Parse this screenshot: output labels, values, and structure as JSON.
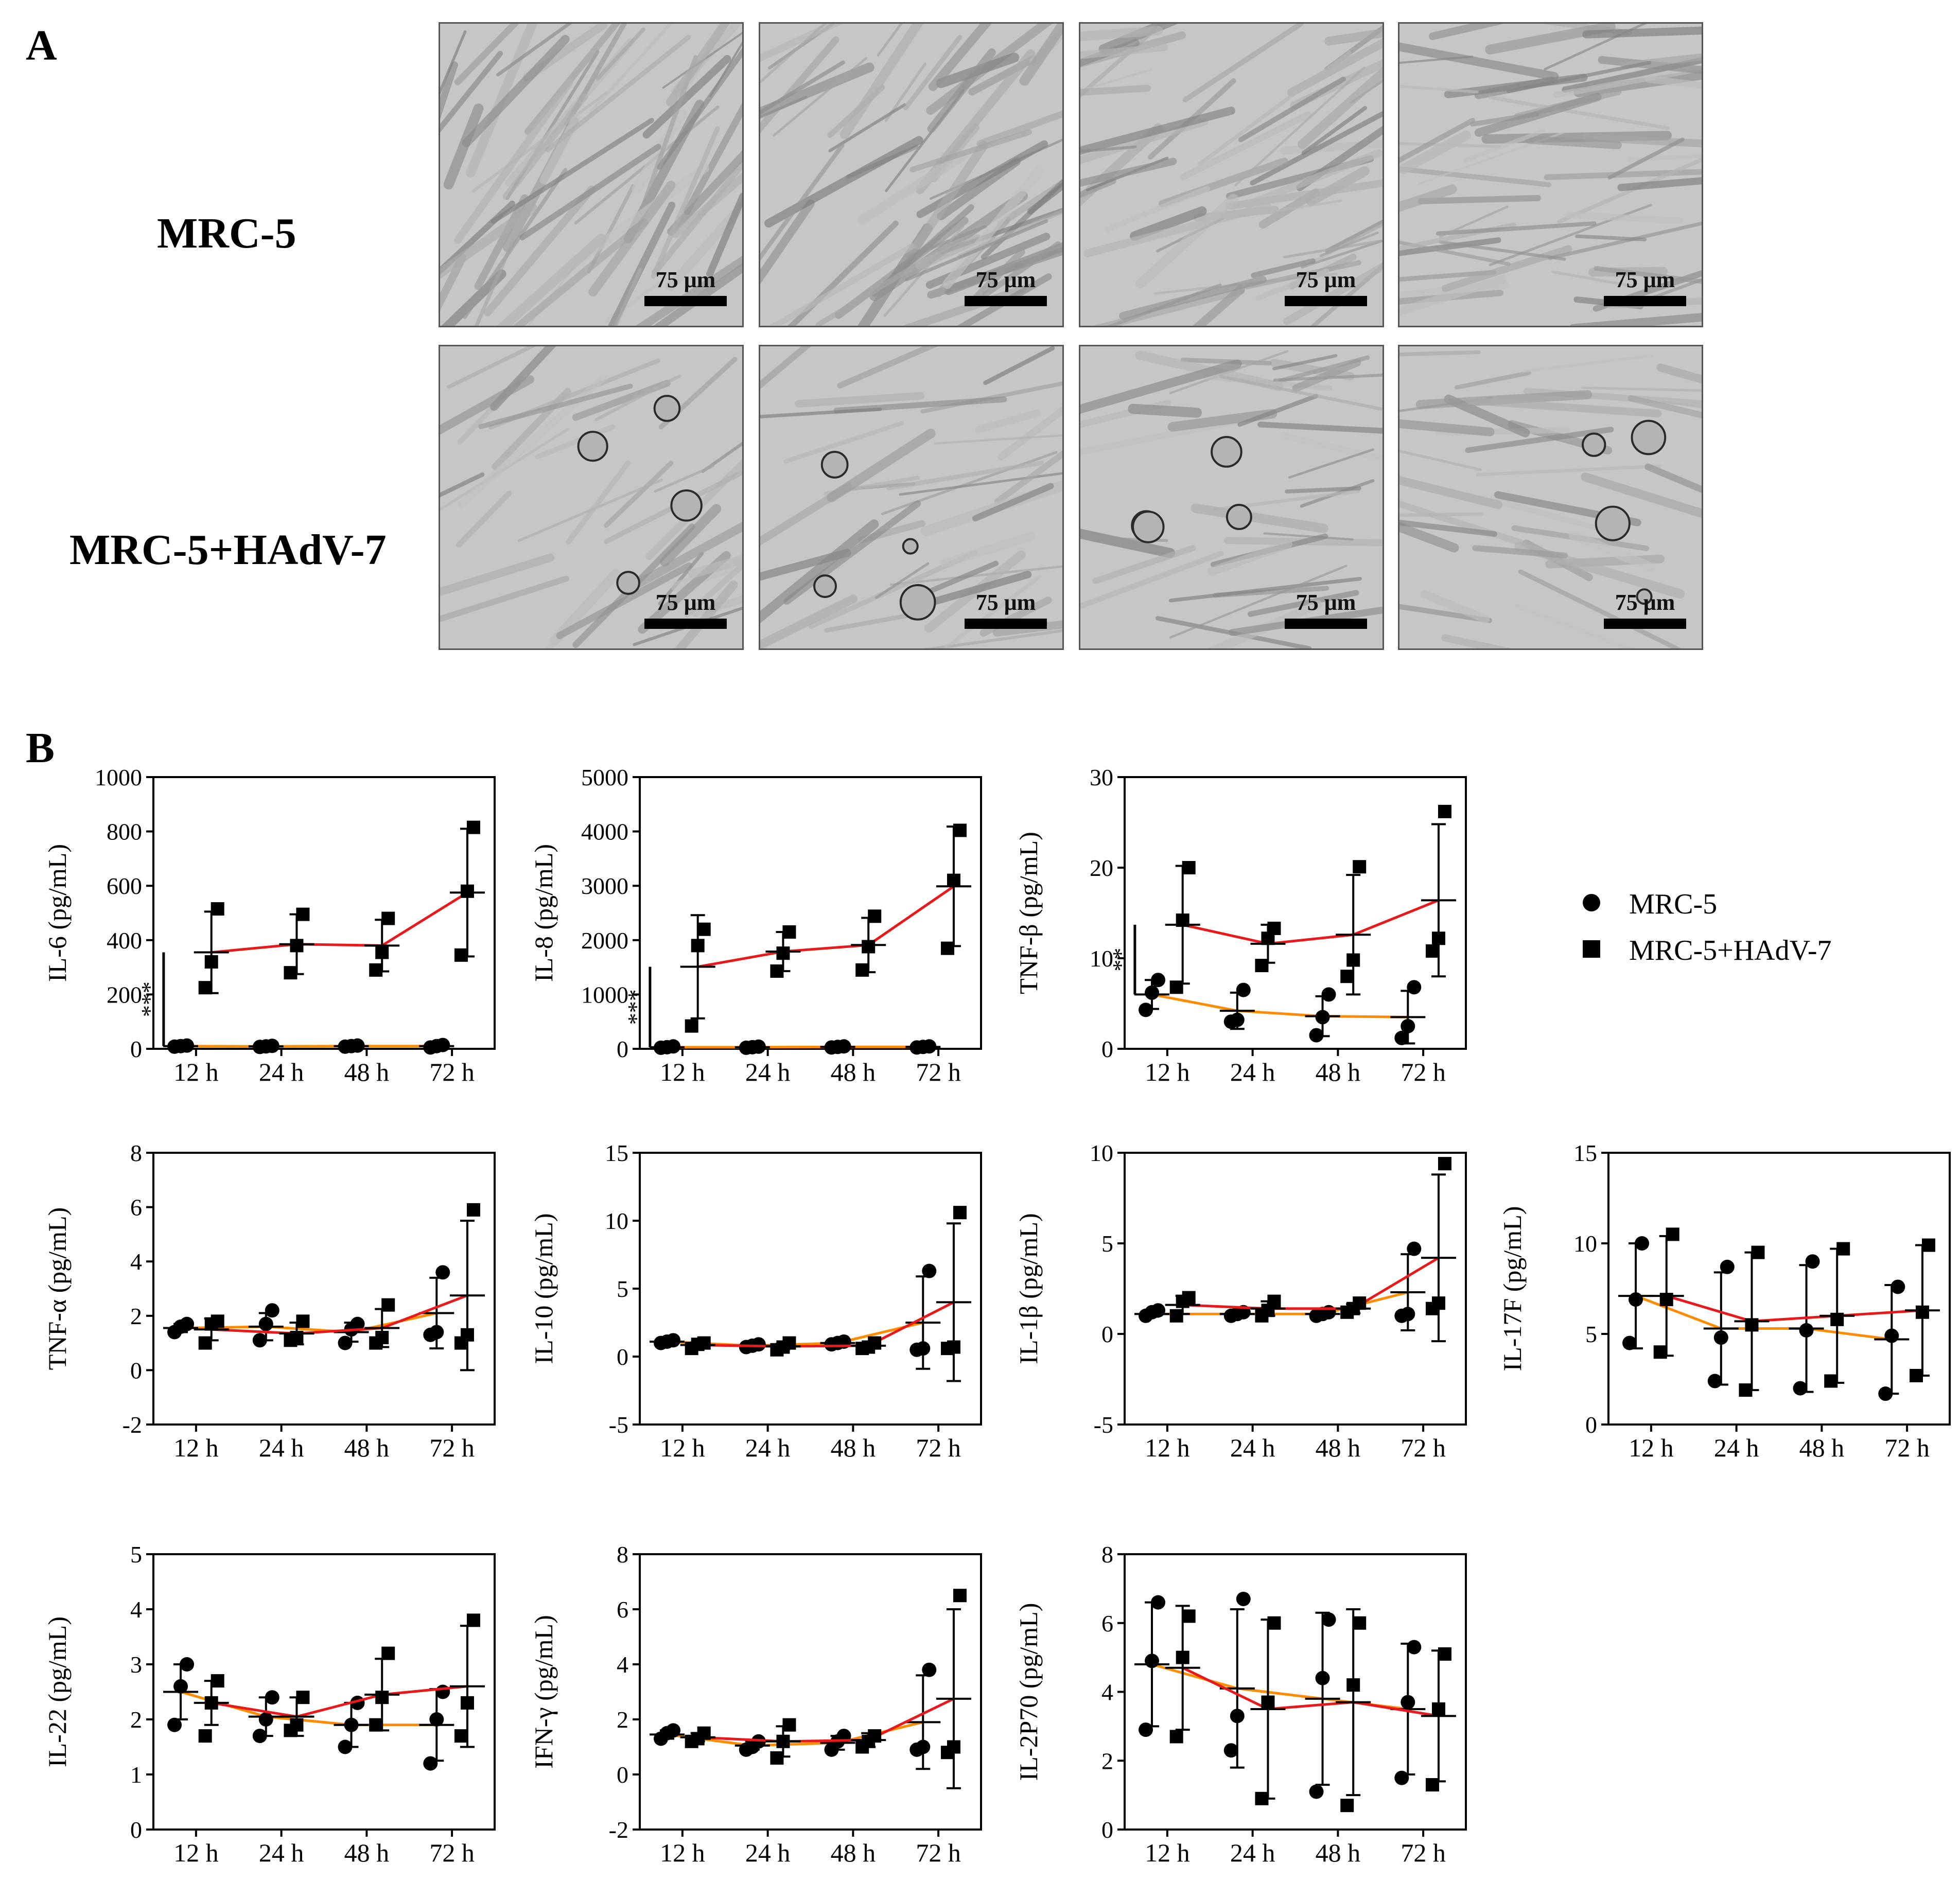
{
  "panel_labels": {
    "a": "A",
    "b": "B"
  },
  "micrographs": {
    "rows": [
      {
        "label": "MRC-5",
        "tiles": [
          {
            "scale_label": "75 μm",
            "infected": false
          },
          {
            "scale_label": "75 μm",
            "infected": false
          },
          {
            "scale_label": "75 μm",
            "infected": false
          },
          {
            "scale_label": "75 μm",
            "infected": false
          }
        ]
      },
      {
        "label": "MRC-5+HAdV-7",
        "tiles": [
          {
            "scale_label": "75 μm",
            "infected": true
          },
          {
            "scale_label": "75 μm",
            "infected": true
          },
          {
            "scale_label": "75 μm",
            "infected": true
          },
          {
            "scale_label": "75 μm",
            "infected": true
          }
        ]
      }
    ]
  },
  "legend": {
    "mrc5": "MRC-5",
    "hadv": "MRC-5+HAdV-7"
  },
  "colors": {
    "mrc5_line": "#ff8c00",
    "hadv_line": "#e8191b",
    "marker": "#000000"
  },
  "chart_data": [
    {
      "type": "scatter",
      "title": "",
      "ylabel": "IL-6 (pg/mL)",
      "ylim": [
        0,
        1000
      ],
      "yticks": [
        "0",
        "200",
        "400",
        "600",
        "800",
        "1000"
      ],
      "categories": [
        "12 h",
        "24 h",
        "48 h",
        "72 h"
      ],
      "significance": "***",
      "series": [
        {
          "name": "MRC-5",
          "points": [
            [
              8,
              10,
              12
            ],
            [
              7,
              9,
              11
            ],
            [
              8,
              10,
              12
            ],
            [
              5,
              10,
              14
            ]
          ],
          "mean": [
            10,
            9,
            10,
            10
          ],
          "sd": [
            2,
            2,
            2,
            4
          ]
        },
        {
          "name": "MRC-5+HAdV-7",
          "points": [
            [
              225,
              320,
              515
            ],
            [
              280,
              380,
              495
            ],
            [
              290,
              355,
              480
            ],
            [
              345,
              580,
              815
            ]
          ],
          "mean": [
            355,
            385,
            380,
            575
          ],
          "sd": [
            150,
            110,
            95,
            235
          ]
        }
      ]
    },
    {
      "type": "scatter",
      "title": "",
      "ylabel": "IL-8 (pg/mL)",
      "ylim": [
        0,
        5000
      ],
      "yticks": [
        "0",
        "1000",
        "2000",
        "3000",
        "4000",
        "5000"
      ],
      "categories": [
        "12 h",
        "24 h",
        "48 h",
        "72 h"
      ],
      "significance": "***",
      "series": [
        {
          "name": "MRC-5",
          "points": [
            [
              20,
              30,
              45
            ],
            [
              20,
              30,
              40
            ],
            [
              25,
              35,
              45
            ],
            [
              25,
              35,
              45
            ]
          ],
          "mean": [
            30,
            30,
            35,
            35
          ],
          "sd": [
            12,
            10,
            10,
            10
          ]
        },
        {
          "name": "MRC-5+HAdV-7",
          "points": [
            [
              420,
              1900,
              2200
            ],
            [
              1430,
              1760,
              2150
            ],
            [
              1450,
              1880,
              2440
            ],
            [
              1850,
              3100,
              4020
            ]
          ],
          "mean": [
            1510,
            1790,
            1910,
            2990
          ],
          "sd": [
            950,
            360,
            500,
            1100
          ]
        }
      ]
    },
    {
      "type": "scatter",
      "title": "",
      "ylabel": "TNF-β (pg/mL)",
      "ylim": [
        0,
        30
      ],
      "yticks": [
        "0",
        "10",
        "20",
        "30"
      ],
      "categories": [
        "12 h",
        "24 h",
        "48 h",
        "72 h"
      ],
      "significance": "**",
      "series": [
        {
          "name": "MRC-5",
          "points": [
            [
              4.3,
              6.2,
              7.6
            ],
            [
              3.0,
              3.2,
              6.5
            ],
            [
              1.5,
              3.5,
              6.0
            ],
            [
              1.2,
              2.5,
              6.8
            ]
          ],
          "mean": [
            6.0,
            4.2,
            3.6,
            3.5
          ],
          "sd": [
            1.6,
            2.0,
            2.2,
            2.9
          ]
        },
        {
          "name": "MRC-5+HAdV-7",
          "points": [
            [
              6.8,
              14.2,
              20.0
            ],
            [
              9.2,
              12.2,
              13.3
            ],
            [
              8.0,
              9.8,
              20.1
            ],
            [
              10.8,
              12.2,
              26.2
            ]
          ],
          "mean": [
            13.7,
            11.6,
            12.6,
            16.4
          ],
          "sd": [
            6.5,
            2.1,
            6.6,
            8.4
          ]
        }
      ]
    },
    {
      "type": "scatter",
      "title": "",
      "ylabel": "TNF-α (pg/mL)",
      "ylim": [
        -2,
        8
      ],
      "yticks": [
        "-2",
        "0",
        "2",
        "4",
        "6",
        "8"
      ],
      "categories": [
        "12 h",
        "24 h",
        "48 h",
        "72 h"
      ],
      "significance": "",
      "series": [
        {
          "name": "MRC-5",
          "points": [
            [
              1.4,
              1.6,
              1.7
            ],
            [
              1.1,
              1.7,
              2.2
            ],
            [
              1.0,
              1.5,
              1.7
            ],
            [
              1.3,
              1.4,
              3.6
            ]
          ],
          "mean": [
            1.55,
            1.6,
            1.4,
            2.1
          ],
          "sd": [
            0.15,
            0.5,
            0.35,
            1.3
          ]
        },
        {
          "name": "MRC-5+HAdV-7",
          "points": [
            [
              1.0,
              1.7,
              1.8
            ],
            [
              1.1,
              1.2,
              1.8
            ],
            [
              1.0,
              1.2,
              2.4
            ],
            [
              1.0,
              1.3,
              5.9
            ]
          ],
          "mean": [
            1.5,
            1.35,
            1.55,
            2.75
          ],
          "sd": [
            0.4,
            0.4,
            0.7,
            2.75
          ]
        }
      ]
    },
    {
      "type": "scatter",
      "title": "",
      "ylabel": "IL-10 (pg/mL)",
      "ylim": [
        -5,
        15
      ],
      "yticks": [
        "-5",
        "0",
        "5",
        "10",
        "15"
      ],
      "categories": [
        "12 h",
        "24 h",
        "48 h",
        "72 h"
      ],
      "significance": "",
      "series": [
        {
          "name": "MRC-5",
          "points": [
            [
              1.0,
              1.1,
              1.2
            ],
            [
              0.7,
              0.8,
              0.9
            ],
            [
              0.9,
              1.0,
              1.1
            ],
            [
              0.5,
              0.6,
              6.3
            ]
          ],
          "mean": [
            1.1,
            0.8,
            1.0,
            2.5
          ],
          "sd": [
            0.1,
            0.1,
            0.1,
            3.4
          ]
        },
        {
          "name": "MRC-5+HAdV-7",
          "points": [
            [
              0.6,
              0.9,
              1.0
            ],
            [
              0.5,
              0.7,
              1.0
            ],
            [
              0.6,
              0.7,
              1.0
            ],
            [
              0.6,
              0.7,
              10.6
            ]
          ],
          "mean": [
            0.85,
            0.75,
            0.8,
            4.0
          ],
          "sd": [
            0.2,
            0.2,
            0.2,
            5.8
          ]
        }
      ]
    },
    {
      "type": "scatter",
      "title": "",
      "ylabel": "IL-1β (pg/mL)",
      "ylim": [
        -5,
        10
      ],
      "yticks": [
        "-5",
        "0",
        "5",
        "10"
      ],
      "categories": [
        "12 h",
        "24 h",
        "48 h",
        "72 h"
      ],
      "significance": "",
      "series": [
        {
          "name": "MRC-5",
          "points": [
            [
              1.0,
              1.2,
              1.3
            ],
            [
              1.0,
              1.1,
              1.2
            ],
            [
              1.0,
              1.1,
              1.2
            ],
            [
              1.0,
              1.1,
              4.7
            ]
          ],
          "mean": [
            1.1,
            1.1,
            1.1,
            2.3
          ],
          "sd": [
            0.15,
            0.1,
            0.1,
            2.1
          ]
        },
        {
          "name": "MRC-5+HAdV-7",
          "points": [
            [
              1.0,
              1.8,
              2.0
            ],
            [
              1.0,
              1.3,
              1.8
            ],
            [
              1.2,
              1.4,
              1.7
            ],
            [
              1.4,
              1.7,
              9.4
            ]
          ],
          "mean": [
            1.6,
            1.4,
            1.4,
            4.2
          ],
          "sd": [
            0.5,
            0.4,
            0.25,
            4.6
          ]
        }
      ]
    },
    {
      "type": "scatter",
      "title": "",
      "ylabel": "IL-17F (pg/mL)",
      "ylim": [
        0,
        15
      ],
      "yticks": [
        "0",
        "5",
        "10",
        "15"
      ],
      "categories": [
        "12 h",
        "24 h",
        "48 h",
        "72 h"
      ],
      "significance": "",
      "series": [
        {
          "name": "MRC-5",
          "points": [
            [
              4.5,
              6.9,
              10.0
            ],
            [
              2.4,
              4.8,
              8.7
            ],
            [
              2.0,
              5.2,
              9.0
            ],
            [
              1.7,
              4.9,
              7.6
            ]
          ],
          "mean": [
            7.1,
            5.3,
            5.3,
            4.7
          ],
          "sd": [
            2.9,
            3.1,
            3.5,
            3.0
          ]
        },
        {
          "name": "MRC-5+HAdV-7",
          "points": [
            [
              4.0,
              6.9,
              10.5
            ],
            [
              1.9,
              5.5,
              9.5
            ],
            [
              2.4,
              5.8,
              9.7
            ],
            [
              2.7,
              6.2,
              9.9
            ]
          ],
          "mean": [
            7.1,
            5.7,
            6.0,
            6.3
          ],
          "sd": [
            3.3,
            3.8,
            3.7,
            3.6
          ]
        }
      ]
    },
    {
      "type": "scatter",
      "title": "",
      "ylabel": "IL-22 (pg/mL)",
      "ylim": [
        0,
        5
      ],
      "yticks": [
        "0",
        "1",
        "2",
        "3",
        "4",
        "5"
      ],
      "categories": [
        "12 h",
        "24 h",
        "48 h",
        "72 h"
      ],
      "significance": "",
      "series": [
        {
          "name": "MRC-5",
          "points": [
            [
              1.9,
              2.6,
              3.0
            ],
            [
              1.7,
              2.0,
              2.4
            ],
            [
              1.5,
              1.9,
              2.3
            ],
            [
              1.2,
              2.0,
              2.5
            ]
          ],
          "mean": [
            2.5,
            2.05,
            1.9,
            1.9
          ],
          "sd": [
            0.5,
            0.35,
            0.4,
            0.65
          ]
        },
        {
          "name": "MRC-5+HAdV-7",
          "points": [
            [
              1.7,
              2.3,
              2.7
            ],
            [
              1.8,
              1.9,
              2.4
            ],
            [
              1.9,
              2.4,
              3.2
            ],
            [
              1.7,
              2.3,
              3.8
            ]
          ],
          "mean": [
            2.3,
            2.05,
            2.45,
            2.6
          ],
          "sd": [
            0.4,
            0.35,
            0.65,
            1.1
          ]
        }
      ]
    },
    {
      "type": "scatter",
      "title": "",
      "ylabel": "IFN-γ (pg/mL)",
      "ylim": [
        -2,
        8
      ],
      "yticks": [
        "-2",
        "0",
        "2",
        "4",
        "6",
        "8"
      ],
      "categories": [
        "12 h",
        "24 h",
        "48 h",
        "72 h"
      ],
      "significance": "",
      "series": [
        {
          "name": "MRC-5",
          "points": [
            [
              1.3,
              1.5,
              1.6
            ],
            [
              0.9,
              1.0,
              1.2
            ],
            [
              0.9,
              1.2,
              1.4
            ],
            [
              0.9,
              1.0,
              3.8
            ]
          ],
          "mean": [
            1.45,
            1.05,
            1.15,
            1.9
          ],
          "sd": [
            0.15,
            0.15,
            0.25,
            1.7
          ]
        },
        {
          "name": "MRC-5+HAdV-7",
          "points": [
            [
              1.2,
              1.3,
              1.5
            ],
            [
              0.6,
              1.2,
              1.8
            ],
            [
              1.0,
              1.2,
              1.4
            ],
            [
              0.8,
              1.0,
              6.5
            ]
          ],
          "mean": [
            1.35,
            1.2,
            1.25,
            2.75
          ],
          "sd": [
            0.15,
            0.55,
            0.25,
            3.25
          ]
        }
      ]
    },
    {
      "type": "scatter",
      "title": "",
      "ylabel": "IL-2P70 (pg/mL)",
      "ylim": [
        0,
        8
      ],
      "yticks": [
        "0",
        "2",
        "4",
        "6",
        "8"
      ],
      "categories": [
        "12 h",
        "24 h",
        "48 h",
        "72 h"
      ],
      "significance": "",
      "series": [
        {
          "name": "MRC-5",
          "points": [
            [
              2.9,
              4.9,
              6.6
            ],
            [
              2.3,
              3.3,
              6.7
            ],
            [
              1.1,
              4.4,
              6.1
            ],
            [
              1.5,
              3.7,
              5.3
            ]
          ],
          "mean": [
            4.8,
            4.1,
            3.8,
            3.5
          ],
          "sd": [
            1.8,
            2.3,
            2.5,
            1.9
          ]
        },
        {
          "name": "MRC-5+HAdV-7",
          "points": [
            [
              2.7,
              5.0,
              6.2
            ],
            [
              0.9,
              3.7,
              6.0
            ],
            [
              0.7,
              4.2,
              6.0
            ],
            [
              1.3,
              3.5,
              5.1
            ]
          ],
          "mean": [
            4.7,
            3.5,
            3.7,
            3.3
          ],
          "sd": [
            1.8,
            2.6,
            2.7,
            1.9
          ]
        }
      ]
    }
  ]
}
